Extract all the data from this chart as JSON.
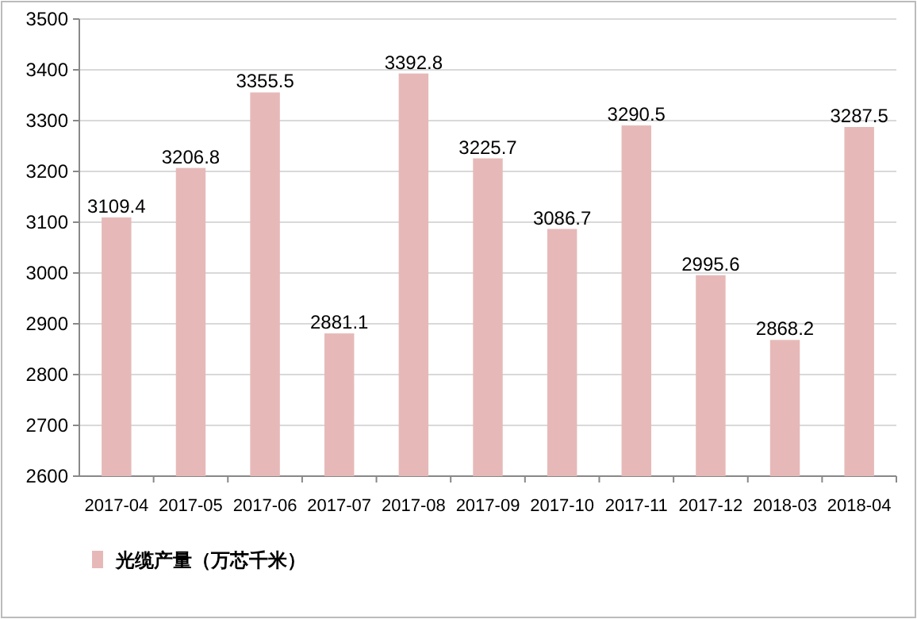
{
  "chart_data": {
    "type": "bar",
    "categories": [
      "2017-04",
      "2017-05",
      "2017-06",
      "2017-07",
      "2017-08",
      "2017-09",
      "2017-10",
      "2017-11",
      "2017-12",
      "2018-03",
      "2018-04"
    ],
    "series": [
      {
        "name": "光缆产量（万芯千米）",
        "color": "#e6b9b8",
        "values": [
          3109.4,
          3206.8,
          3355.5,
          2881.1,
          3392.8,
          3225.7,
          3086.7,
          3290.5,
          2995.6,
          2868.2,
          3287.5
        ]
      }
    ],
    "ylim": [
      2600,
      3500
    ],
    "yticks": [
      2600,
      2700,
      2800,
      2900,
      3000,
      3100,
      3200,
      3300,
      3400,
      3500
    ],
    "grid": "y",
    "legend": "bottom left",
    "data_labels": true
  }
}
